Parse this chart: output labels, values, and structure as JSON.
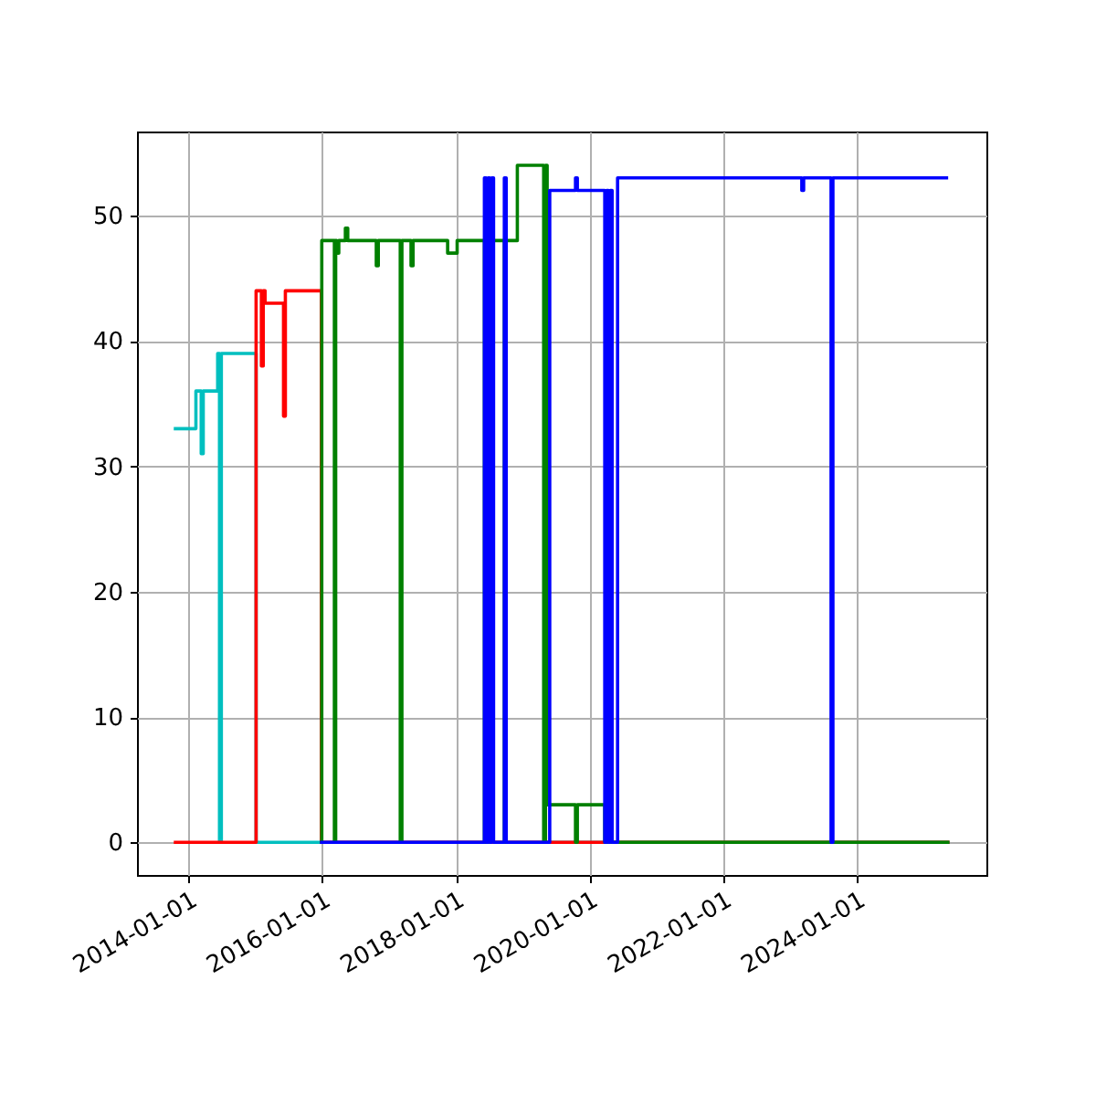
{
  "chart_data": {
    "type": "step",
    "grid": true,
    "xlim": [
      "2013-03-25",
      "2025-12-10"
    ],
    "ylim": [
      -2.6,
      56.7
    ],
    "xticks": [
      "2014-01-01",
      "2016-01-01",
      "2018-01-01",
      "2020-01-01",
      "2022-01-01",
      "2024-01-01"
    ],
    "yticks": [
      0,
      10,
      20,
      30,
      40,
      50
    ],
    "series": [
      {
        "color": "#00bfbf",
        "x": [
          "2013-10-12",
          "2014-02-10",
          "2014-03-11",
          "2014-03-22",
          "2014-06-09",
          "2014-06-19",
          "2014-06-29",
          "2015-01-05",
          "2025-05-22"
        ],
        "values": [
          33,
          36,
          31,
          36,
          39,
          0,
          39,
          0,
          0
        ]
      },
      {
        "color": "#ff0000",
        "x": [
          "2013-10-12",
          "2015-01-05",
          "2015-02-03",
          "2015-02-13",
          "2015-02-23",
          "2015-06-04",
          "2015-06-14",
          "2015-12-28",
          "2025-05-22"
        ],
        "values": [
          0,
          44,
          38,
          44,
          43,
          34,
          44,
          0,
          0
        ]
      },
      {
        "color": "#008000",
        "x": [
          "2015-12-20",
          "2015-12-30",
          "2016-03-08",
          "2016-03-15",
          "2016-03-20",
          "2016-04-01",
          "2016-05-07",
          "2016-05-20",
          "2016-10-23",
          "2016-11-03",
          "2017-03-03",
          "2017-03-12",
          "2017-05-01",
          "2017-05-12",
          "2017-11-17",
          "2018-01-08",
          "2018-06-06",
          "2018-06-16",
          "2018-06-26",
          "2018-07-06",
          "2018-09-23",
          "2018-10-03",
          "2018-12-03",
          "2019-04-26",
          "2019-05-06",
          "2019-05-15",
          "2019-10-17",
          "2019-10-27",
          "2020-03-25",
          "2020-04-04",
          "2020-04-14",
          "2020-04-24",
          "2025-05-22"
        ],
        "values": [
          0,
          48,
          0,
          48,
          47,
          48,
          49,
          48,
          46,
          48,
          0,
          48,
          46,
          48,
          47,
          48,
          0,
          48,
          0,
          48,
          0,
          48,
          54,
          0,
          54,
          3,
          0,
          3,
          0,
          3,
          0,
          0,
          0
        ]
      },
      {
        "color": "#0000ff",
        "x": [
          "2015-12-20",
          "2018-06-06",
          "2018-06-16",
          "2018-06-26",
          "2018-07-06",
          "2018-07-16",
          "2018-07-26",
          "2018-09-23",
          "2018-10-03",
          "2019-05-29",
          "2019-10-17",
          "2019-10-27",
          "2020-03-25",
          "2020-04-04",
          "2020-04-14",
          "2020-04-24",
          "2020-05-04",
          "2020-06-03",
          "2023-03-07",
          "2023-03-17",
          "2023-08-14",
          "2023-08-24",
          "2025-05-15"
        ],
        "values": [
          0,
          53,
          0,
          53,
          0,
          53,
          0,
          53,
          0,
          52,
          53,
          52,
          0,
          52,
          0,
          52,
          0,
          53,
          52,
          53,
          0,
          53,
          53
        ]
      }
    ]
  }
}
